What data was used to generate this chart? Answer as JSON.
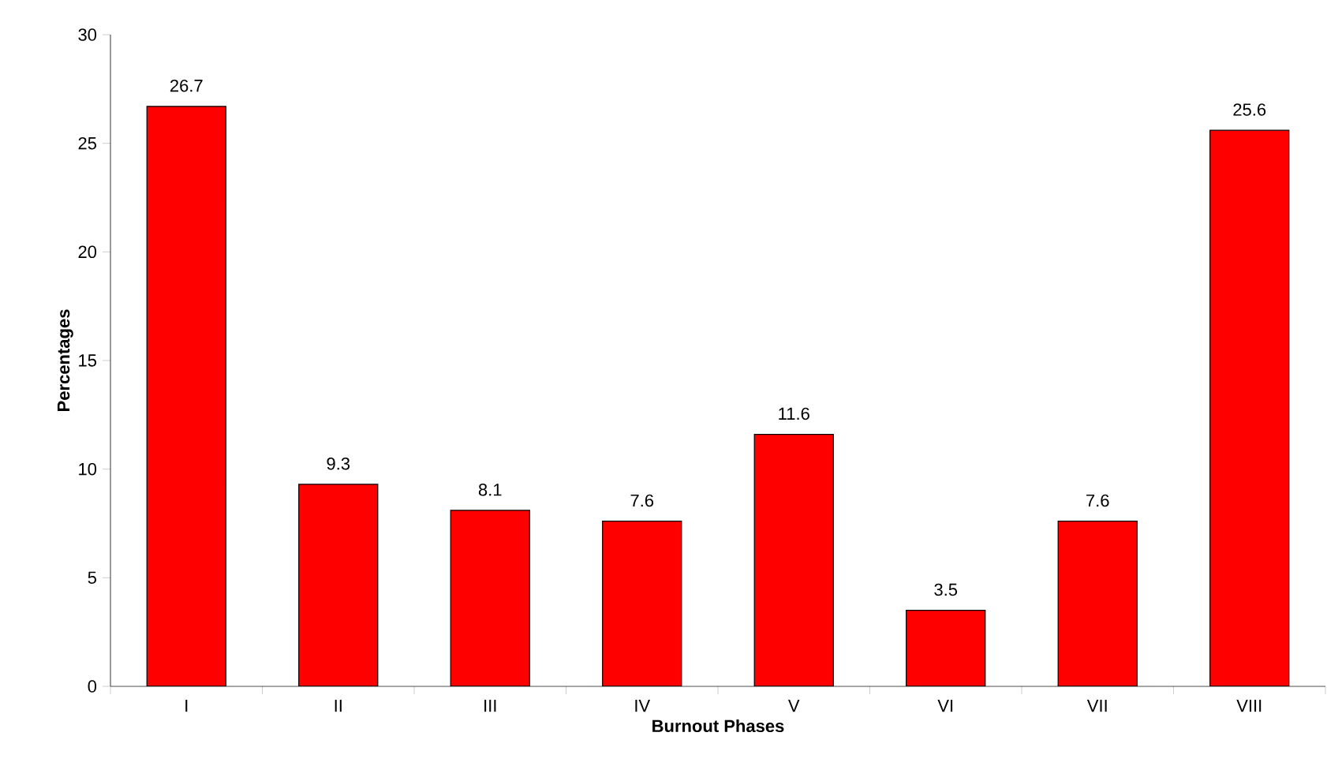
{
  "chart_data": {
    "type": "bar",
    "xlabel": "Burnout Phases",
    "ylabel": "Percentages",
    "categories": [
      "I",
      "II",
      "III",
      "IV",
      "V",
      "VI",
      "VII",
      "VIII"
    ],
    "values": [
      26.7,
      9.3,
      8.1,
      7.6,
      11.6,
      3.5,
      7.6,
      25.6
    ],
    "color": "#ff0000",
    "ylim": [
      0,
      30
    ],
    "yticks": [
      0,
      5,
      10,
      15,
      20,
      25,
      30
    ],
    "data_labels": true
  }
}
